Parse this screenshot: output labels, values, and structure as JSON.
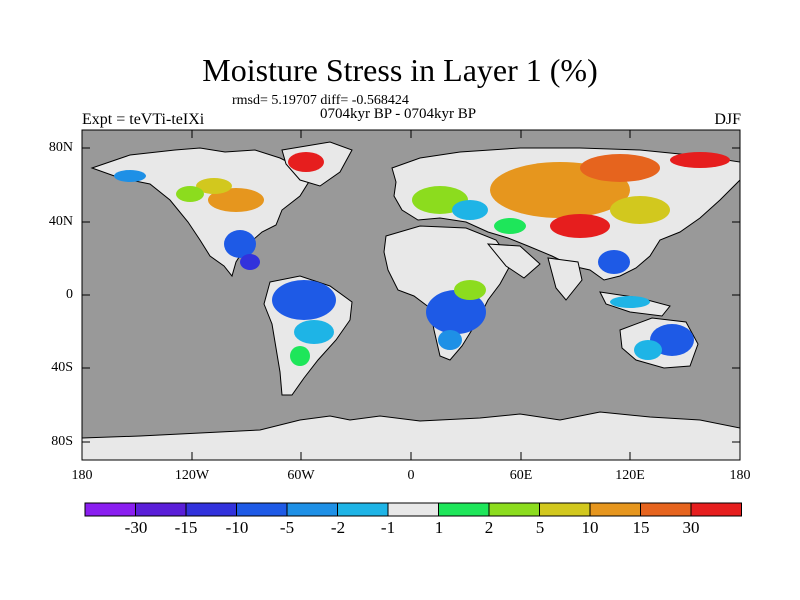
{
  "plot": {
    "title": "Moisture Stress in Layer 1 (%)",
    "stats": "rmsd= 5.19707 diff= -0.568424",
    "period": "0704kyr BP - 0704kyr BP",
    "experiment": "Expt = teVTi-teIXi",
    "season": "DJF"
  },
  "axes": {
    "lat_ticks": [
      "80N",
      "40N",
      "0",
      "40S",
      "80S"
    ],
    "lon_ticks": [
      "180",
      "120W",
      "60W",
      "0",
      "60E",
      "120E",
      "180"
    ]
  },
  "colorbar": {
    "colors": [
      "#8a1ef0",
      "#5a1ed8",
      "#3232dc",
      "#1e5ae6",
      "#1e90e6",
      "#1eb4e6",
      "#e8e8e8",
      "#1ee65a",
      "#8cdc1e",
      "#d2c81e",
      "#e6961e",
      "#e6641e",
      "#e61e1e"
    ],
    "labels": [
      "-30",
      "-15",
      "-10",
      "-5",
      "-2",
      "-1",
      "1",
      "2",
      "5",
      "10",
      "15",
      "30"
    ]
  },
  "colors": {
    "ocean": "#999999",
    "land_neutral": "#e8e8e8",
    "coast": "#000000"
  }
}
